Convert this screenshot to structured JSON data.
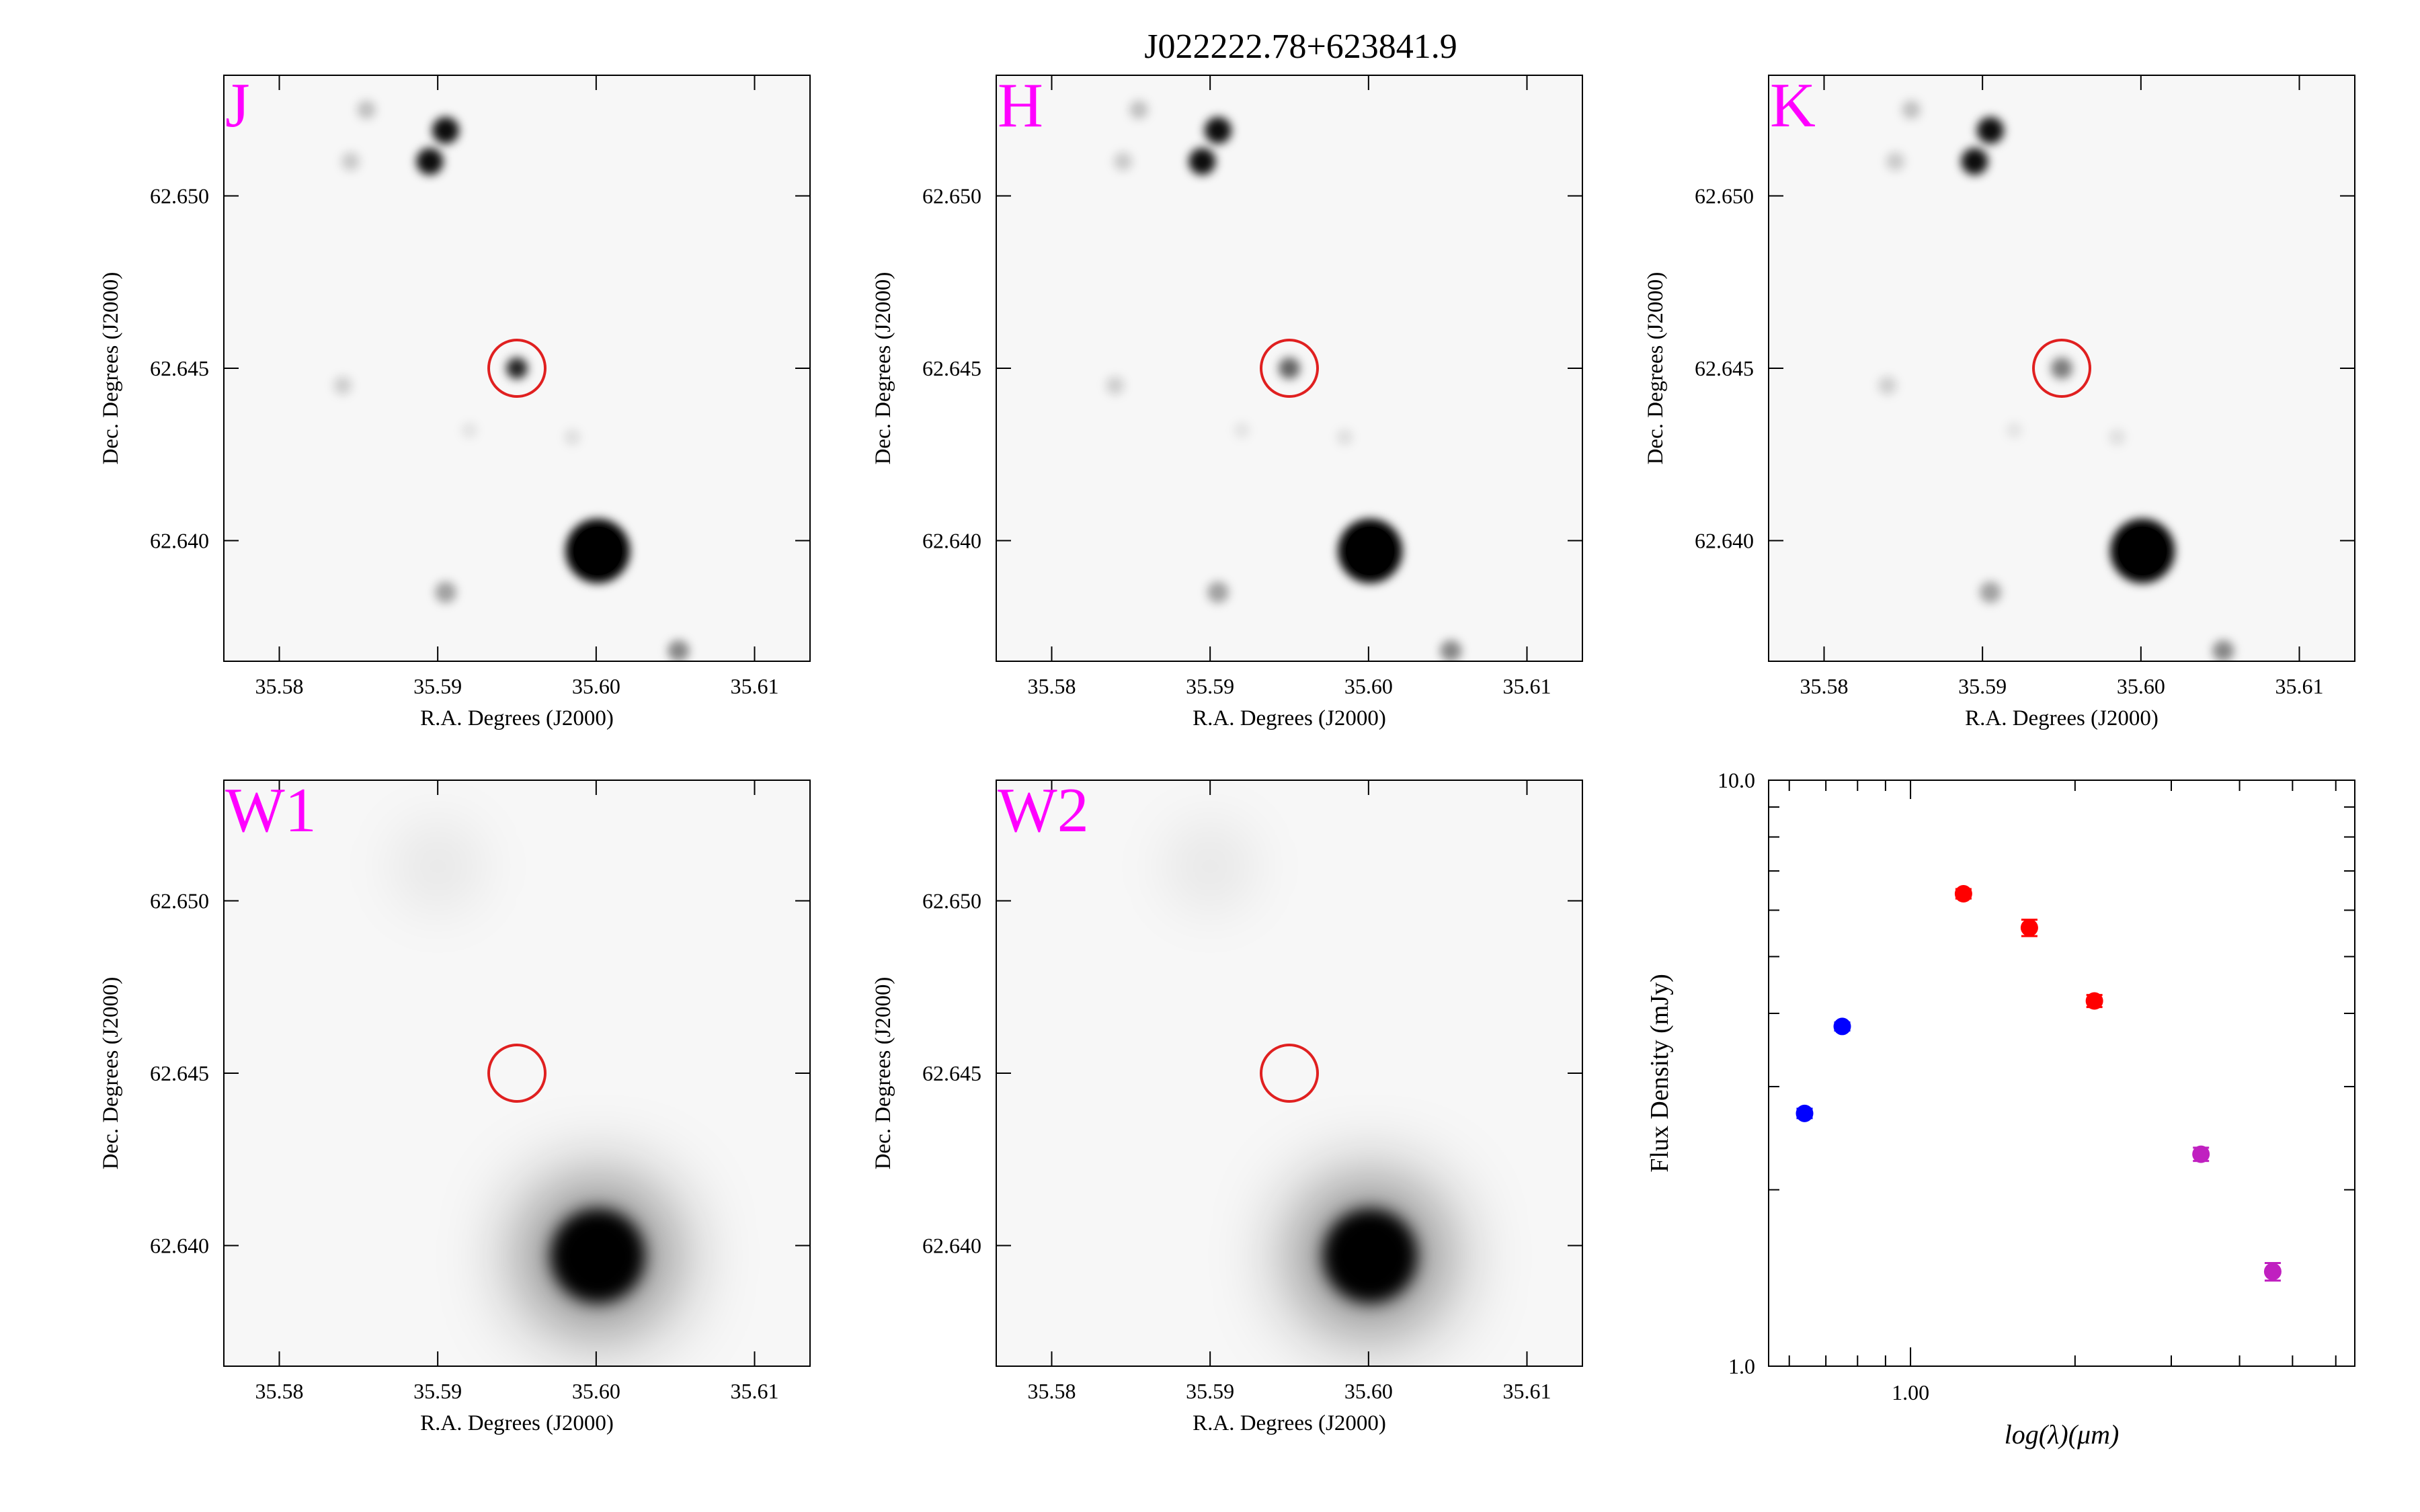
{
  "figure": {
    "title": "J022222.78+623841.9"
  },
  "colors": {
    "band_label": "#ff00ff",
    "aperture_circle": "#e02020",
    "optical_points": "#0000ff",
    "nir_points": "#ff0000",
    "wise_points": "#c020c0"
  },
  "chart_data": [
    {
      "type": "image",
      "band": "J",
      "xlabel": "R.A. Degrees (J2000)",
      "ylabel": "Dec. Degrees (J2000)",
      "xlim": [
        35.5765,
        35.6135
      ],
      "ylim": [
        62.6365,
        62.6535
      ],
      "xticks": [
        "35.58",
        "35.59",
        "35.60",
        "35.61"
      ],
      "yticks": [
        "62.640",
        "62.645",
        "62.650"
      ],
      "target": {
        "ra": 35.595,
        "dec": 62.645,
        "detected": true
      }
    },
    {
      "type": "image",
      "band": "H",
      "xlabel": "R.A. Degrees (J2000)",
      "ylabel": "Dec. Degrees (J2000)",
      "xlim": [
        35.5765,
        35.6135
      ],
      "ylim": [
        62.6365,
        62.6535
      ],
      "xticks": [
        "35.58",
        "35.59",
        "35.60",
        "35.61"
      ],
      "yticks": [
        "62.640",
        "62.645",
        "62.650"
      ],
      "target": {
        "ra": 35.595,
        "dec": 62.645,
        "detected": true
      }
    },
    {
      "type": "image",
      "band": "K",
      "xlabel": "R.A. Degrees (J2000)",
      "ylabel": "Dec. Degrees (J2000)",
      "xlim": [
        35.5765,
        35.6135
      ],
      "ylim": [
        62.6365,
        62.6535
      ],
      "xticks": [
        "35.58",
        "35.59",
        "35.60",
        "35.61"
      ],
      "yticks": [
        "62.640",
        "62.645",
        "62.650"
      ],
      "target": {
        "ra": 35.595,
        "dec": 62.645,
        "detected": true
      }
    },
    {
      "type": "image",
      "band": "W1",
      "xlabel": "R.A. Degrees (J2000)",
      "ylabel": "Dec. Degrees (J2000)",
      "xlim": [
        35.5765,
        35.6135
      ],
      "ylim": [
        62.6365,
        62.6535
      ],
      "xticks": [
        "35.58",
        "35.59",
        "35.60",
        "35.61"
      ],
      "yticks": [
        "62.640",
        "62.645",
        "62.650"
      ],
      "target": {
        "ra": 35.595,
        "dec": 62.645,
        "detected": false
      }
    },
    {
      "type": "image",
      "band": "W2",
      "xlabel": "R.A. Degrees (J2000)",
      "ylabel": "Dec. Degrees (J2000)",
      "xlim": [
        35.5765,
        35.6135
      ],
      "ylim": [
        62.6365,
        62.6535
      ],
      "xticks": [
        "35.58",
        "35.59",
        "35.60",
        "35.61"
      ],
      "yticks": [
        "62.640",
        "62.645",
        "62.650"
      ],
      "target": {
        "ra": 35.595,
        "dec": 62.645,
        "detected": false
      }
    },
    {
      "type": "scatter",
      "xscale": "log",
      "yscale": "log",
      "xlabel": "log(λ)(μm)",
      "ylabel": "Flux Density (mJy)",
      "xlim": [
        0.55,
        6.5
      ],
      "ylim": [
        1.0,
        10.0
      ],
      "xticks": [
        "1.00"
      ],
      "yticks": [
        "1.0",
        "10.0"
      ],
      "grid": false,
      "series": [
        {
          "color_key": "optical_points",
          "points": [
            {
              "x": 0.64,
              "y": 2.7,
              "err": 0.05
            },
            {
              "x": 0.75,
              "y": 3.8,
              "err": 0.06
            }
          ]
        },
        {
          "color_key": "nir_points",
          "points": [
            {
              "x": 1.25,
              "y": 6.4,
              "err": 0.12
            },
            {
              "x": 1.65,
              "y": 5.6,
              "err": 0.18
            },
            {
              "x": 2.17,
              "y": 4.2,
              "err": 0.1
            }
          ]
        },
        {
          "color_key": "wise_points",
          "points": [
            {
              "x": 3.4,
              "y": 2.3,
              "err": 0.06
            },
            {
              "x": 4.6,
              "y": 1.45,
              "err": 0.05
            }
          ]
        }
      ]
    }
  ]
}
